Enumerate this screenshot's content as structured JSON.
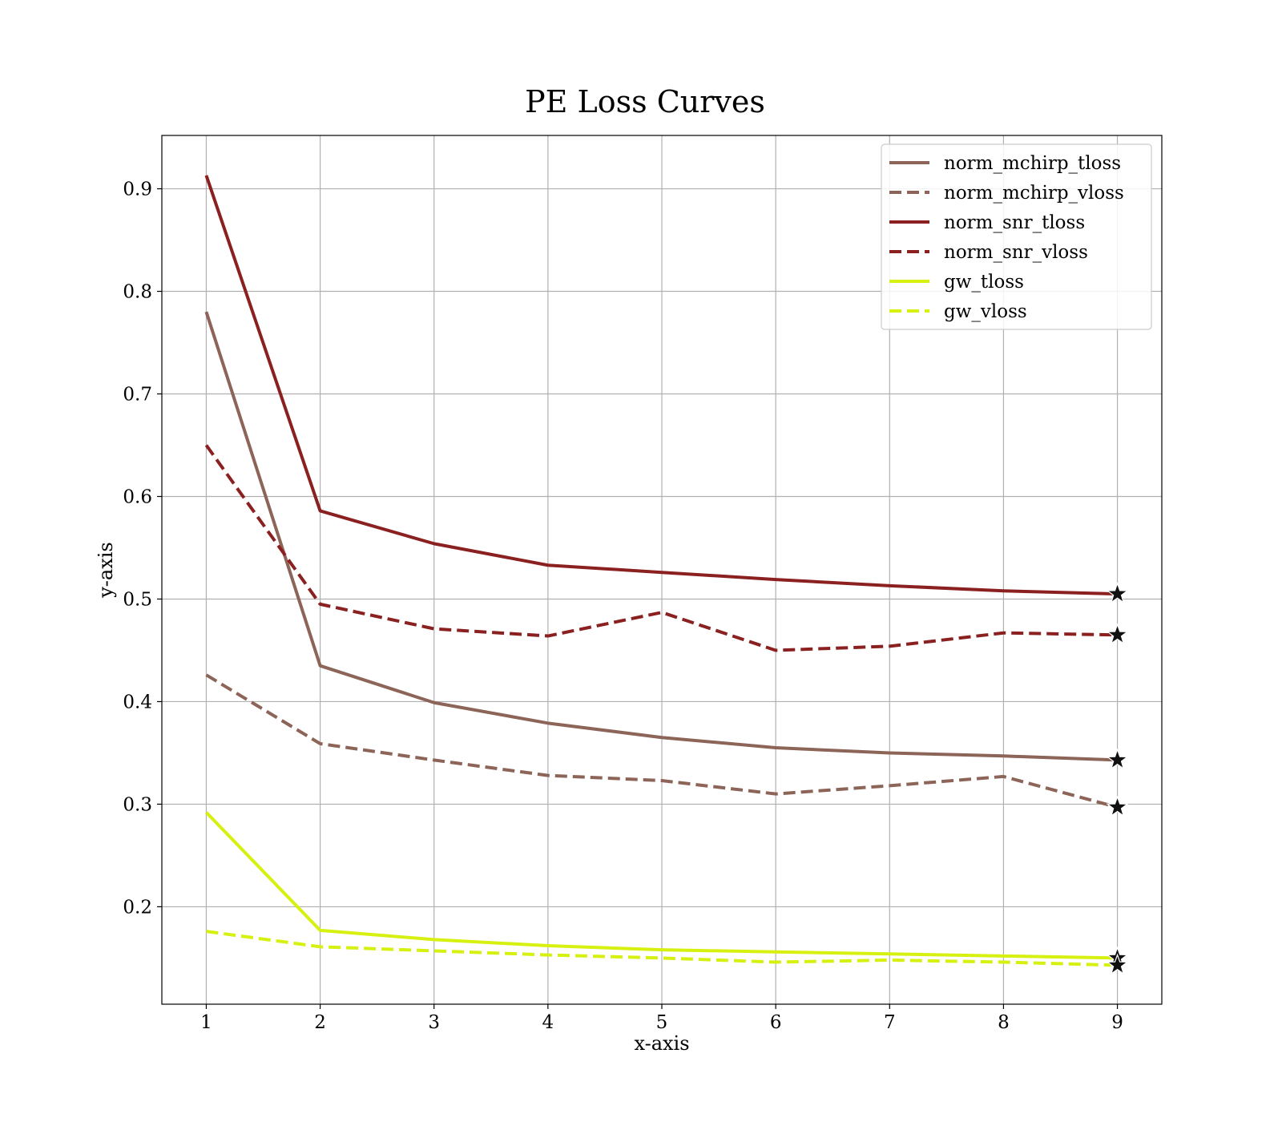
{
  "chart_data": {
    "type": "line",
    "title": "PE Loss Curves",
    "xlabel": "x-axis",
    "ylabel": "y-axis",
    "xlim": [
      0.61,
      9.39
    ],
    "ylim": [
      0.105,
      0.952
    ],
    "xticks": [
      1,
      2,
      3,
      4,
      5,
      6,
      7,
      8,
      9
    ],
    "xtick_labels": [
      "1",
      "2",
      "3",
      "4",
      "5",
      "6",
      "7",
      "8",
      "9"
    ],
    "yticks": [
      0.2,
      0.3,
      0.4,
      0.5,
      0.6,
      0.7,
      0.8,
      0.9
    ],
    "ytick_labels": [
      "0.2",
      "0.3",
      "0.4",
      "0.5",
      "0.6",
      "0.7",
      "0.8",
      "0.9"
    ],
    "grid": true,
    "legend_position": "top-right",
    "x": [
      1,
      2,
      3,
      4,
      5,
      6,
      7,
      8,
      9
    ],
    "final_marker": "star",
    "series": [
      {
        "name": "norm_mchirp_tloss",
        "color": "#8c6458",
        "dash": "solid",
        "values": [
          0.78,
          0.435,
          0.399,
          0.379,
          0.365,
          0.355,
          0.35,
          0.347,
          0.343
        ]
      },
      {
        "name": "norm_mchirp_vloss",
        "color": "#8c6458",
        "dash": "dashed",
        "values": [
          0.426,
          0.359,
          0.343,
          0.328,
          0.323,
          0.31,
          0.318,
          0.327,
          0.297
        ]
      },
      {
        "name": "norm_snr_tloss",
        "color": "#8b2020",
        "dash": "solid",
        "values": [
          0.913,
          0.586,
          0.554,
          0.533,
          0.526,
          0.519,
          0.513,
          0.508,
          0.505
        ]
      },
      {
        "name": "norm_snr_vloss",
        "color": "#8b2020",
        "dash": "dashed",
        "values": [
          0.65,
          0.495,
          0.471,
          0.464,
          0.487,
          0.45,
          0.454,
          0.467,
          0.465
        ]
      },
      {
        "name": "gw_tloss",
        "color": "#d6f010",
        "dash": "solid",
        "values": [
          0.292,
          0.177,
          0.168,
          0.162,
          0.158,
          0.156,
          0.154,
          0.152,
          0.15
        ]
      },
      {
        "name": "gw_vloss",
        "color": "#d6f010",
        "dash": "dashed",
        "values": [
          0.176,
          0.161,
          0.157,
          0.153,
          0.15,
          0.146,
          0.148,
          0.146,
          0.143
        ]
      }
    ]
  }
}
